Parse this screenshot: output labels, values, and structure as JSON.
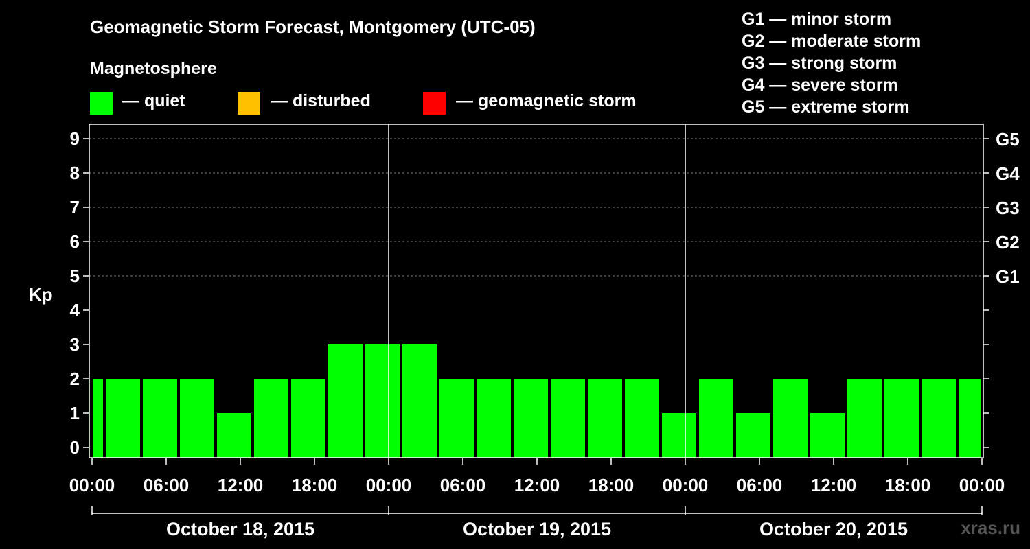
{
  "chart_data": {
    "type": "bar",
    "title": "Geomagnetic Storm Forecast, Montgomery (UTC-05)",
    "legend_title": "Magnetosphere",
    "legend": [
      {
        "label": "— quiet",
        "color": "#00ff00"
      },
      {
        "label": "— disturbed",
        "color": "#ffc000"
      },
      {
        "label": "— geomagnetic storm",
        "color": "#ff0000"
      }
    ],
    "g_scale": [
      "G1 — minor storm",
      "G2 — moderate storm",
      "G3 — strong storm",
      "G4 — severe storm",
      "G5 — extreme storm"
    ],
    "ylabel": "Kp",
    "ylim": [
      0,
      9
    ],
    "y_ticks": [
      "0",
      "1",
      "2",
      "3",
      "4",
      "5",
      "6",
      "7",
      "8",
      "9"
    ],
    "right_ticks": [
      {
        "kp": 5,
        "label": "G1"
      },
      {
        "kp": 6,
        "label": "G2"
      },
      {
        "kp": 7,
        "label": "G3"
      },
      {
        "kp": 8,
        "label": "G4"
      },
      {
        "kp": 9,
        "label": "G5"
      }
    ],
    "x_range_hours": [
      0,
      72
    ],
    "x_ticks": [
      {
        "hour": 0,
        "label": "00:00"
      },
      {
        "hour": 6,
        "label": "06:00"
      },
      {
        "hour": 12,
        "label": "12:00"
      },
      {
        "hour": 18,
        "label": "18:00"
      },
      {
        "hour": 24,
        "label": "00:00"
      },
      {
        "hour": 30,
        "label": "06:00"
      },
      {
        "hour": 36,
        "label": "12:00"
      },
      {
        "hour": 42,
        "label": "18:00"
      },
      {
        "hour": 48,
        "label": "00:00"
      },
      {
        "hour": 54,
        "label": "06:00"
      },
      {
        "hour": 60,
        "label": "12:00"
      },
      {
        "hour": 66,
        "label": "18:00"
      },
      {
        "hour": 72,
        "label": "00:00"
      }
    ],
    "day_separators_hours": [
      24,
      48
    ],
    "days": [
      {
        "label": "October 18, 2015",
        "start": 0,
        "end": 24
      },
      {
        "label": "October 19, 2015",
        "start": 24,
        "end": 48
      },
      {
        "label": "October 20, 2015",
        "start": 48,
        "end": 72
      }
    ],
    "bars": [
      {
        "start": 0,
        "end": 1,
        "kp": 2
      },
      {
        "start": 1,
        "end": 4,
        "kp": 2
      },
      {
        "start": 4,
        "end": 7,
        "kp": 2
      },
      {
        "start": 7,
        "end": 10,
        "kp": 2
      },
      {
        "start": 10,
        "end": 13,
        "kp": 1
      },
      {
        "start": 13,
        "end": 16,
        "kp": 2
      },
      {
        "start": 16,
        "end": 19,
        "kp": 2
      },
      {
        "start": 19,
        "end": 22,
        "kp": 3
      },
      {
        "start": 22,
        "end": 25,
        "kp": 3
      },
      {
        "start": 25,
        "end": 28,
        "kp": 3
      },
      {
        "start": 28,
        "end": 31,
        "kp": 2
      },
      {
        "start": 31,
        "end": 34,
        "kp": 2
      },
      {
        "start": 34,
        "end": 37,
        "kp": 2
      },
      {
        "start": 37,
        "end": 40,
        "kp": 2
      },
      {
        "start": 40,
        "end": 43,
        "kp": 2
      },
      {
        "start": 43,
        "end": 46,
        "kp": 2
      },
      {
        "start": 46,
        "end": 49,
        "kp": 1
      },
      {
        "start": 49,
        "end": 52,
        "kp": 2
      },
      {
        "start": 52,
        "end": 55,
        "kp": 1
      },
      {
        "start": 55,
        "end": 58,
        "kp": 2
      },
      {
        "start": 58,
        "end": 61,
        "kp": 1
      },
      {
        "start": 61,
        "end": 64,
        "kp": 2
      },
      {
        "start": 64,
        "end": 67,
        "kp": 2
      },
      {
        "start": 67,
        "end": 70,
        "kp": 2
      },
      {
        "start": 70,
        "end": 72,
        "kp": 2
      }
    ],
    "bar_color": "#00ff00"
  },
  "watermark": "xras.ru"
}
